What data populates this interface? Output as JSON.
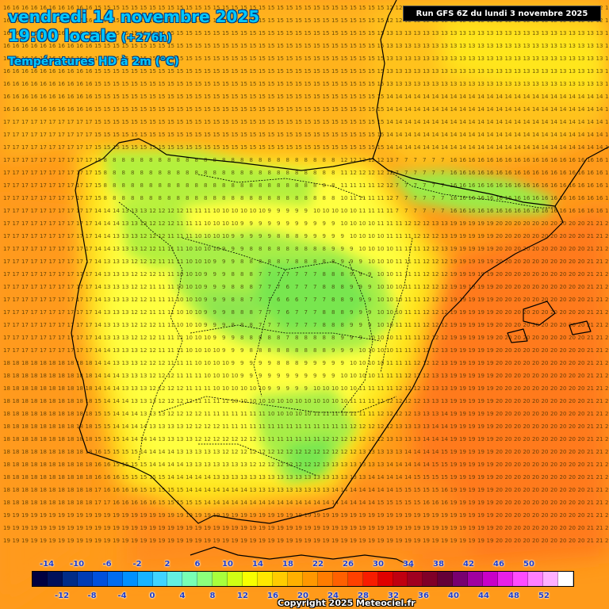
{
  "header": {
    "date": "vendredi 14 novembre 2025",
    "time": "19:00 locale",
    "lead": "(+276h)",
    "parameter": "Températures HD à 2m (°C)"
  },
  "run_info": "Run GFS 6Z du lundi 3 novembre 2025",
  "copyright": "Copyright 2025 Meteociel.fr",
  "legend": {
    "top_labels": [
      "-14",
      "-10",
      "-6",
      "-2",
      "2",
      "6",
      "10",
      "14",
      "18",
      "22",
      "26",
      "30",
      "34",
      "38",
      "42",
      "46",
      "50"
    ],
    "bottom_labels": [
      "-12",
      "-8",
      "-4",
      "0",
      "4",
      "8",
      "12",
      "16",
      "20",
      "24",
      "28",
      "32",
      "36",
      "40",
      "44",
      "48",
      "52"
    ],
    "colors": [
      "#000040",
      "#00105a",
      "#002c88",
      "#003cb4",
      "#0050dc",
      "#006cf0",
      "#0090ff",
      "#18b4ff",
      "#40d4ff",
      "#64f0e0",
      "#78ffb4",
      "#8cff7c",
      "#a8ff3c",
      "#d0ff14",
      "#f8ff00",
      "#ffe800",
      "#ffcc00",
      "#ffb000",
      "#ff9800",
      "#ff7c00",
      "#ff6000",
      "#ff4000",
      "#f81c00",
      "#e00000",
      "#c00010",
      "#a00020",
      "#800028",
      "#640038",
      "#780070",
      "#a000a0",
      "#c800c8",
      "#e820e8",
      "#ff4cff",
      "#ff80ff",
      "#ffb0ff",
      "#ffffff"
    ]
  },
  "map": {
    "colors": {
      "ocean_warm": "#ff8c1a",
      "ocean_mild": "#ffb31a",
      "coast_yellow": "#ffe61a",
      "inland_yellow": "#ffff33",
      "light_green": "#c8f53c",
      "green": "#8ee63c",
      "med_orange": "#ff7a1a",
      "med_hot": "#ff5a1a"
    },
    "grid_value_sample": "15"
  }
}
